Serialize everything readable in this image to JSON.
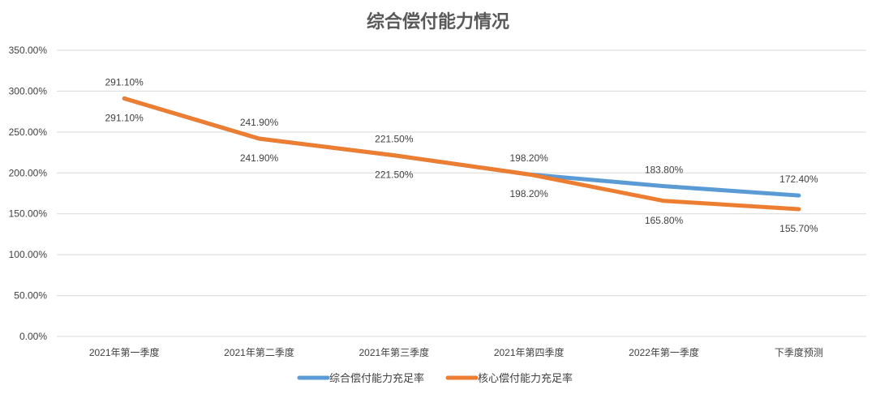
{
  "chart_data": {
    "type": "line",
    "title": "综合偿付能力情况",
    "categories": [
      "2021年第一季度",
      "2021年第二季度",
      "2021年第三季度",
      "2021年第四季度",
      "2022年第一季度",
      "下季度预测"
    ],
    "series": [
      {
        "name": "综合偿付能力充足率",
        "color": "#5b9bd5",
        "values": [
          291.1,
          241.9,
          221.5,
          198.2,
          183.8,
          172.4
        ],
        "labels": [
          "291.10%",
          "241.90%",
          "221.50%",
          "198.20%",
          "183.80%",
          "172.40%"
        ]
      },
      {
        "name": "核心偿付能力充足率",
        "color": "#ed7d31",
        "values": [
          291.1,
          241.9,
          221.5,
          198.2,
          165.8,
          155.7
        ],
        "labels": [
          "291.10%",
          "241.90%",
          "221.50%",
          "198.20%",
          "165.80%",
          "155.70%"
        ]
      }
    ],
    "yticks": [
      "0.00%",
      "50.00%",
      "100.00%",
      "150.00%",
      "200.00%",
      "250.00%",
      "300.00%",
      "350.00%"
    ],
    "ylim": [
      0,
      350
    ],
    "xlabel": "",
    "ylabel": "",
    "grid": true,
    "legend_position": "bottom"
  }
}
